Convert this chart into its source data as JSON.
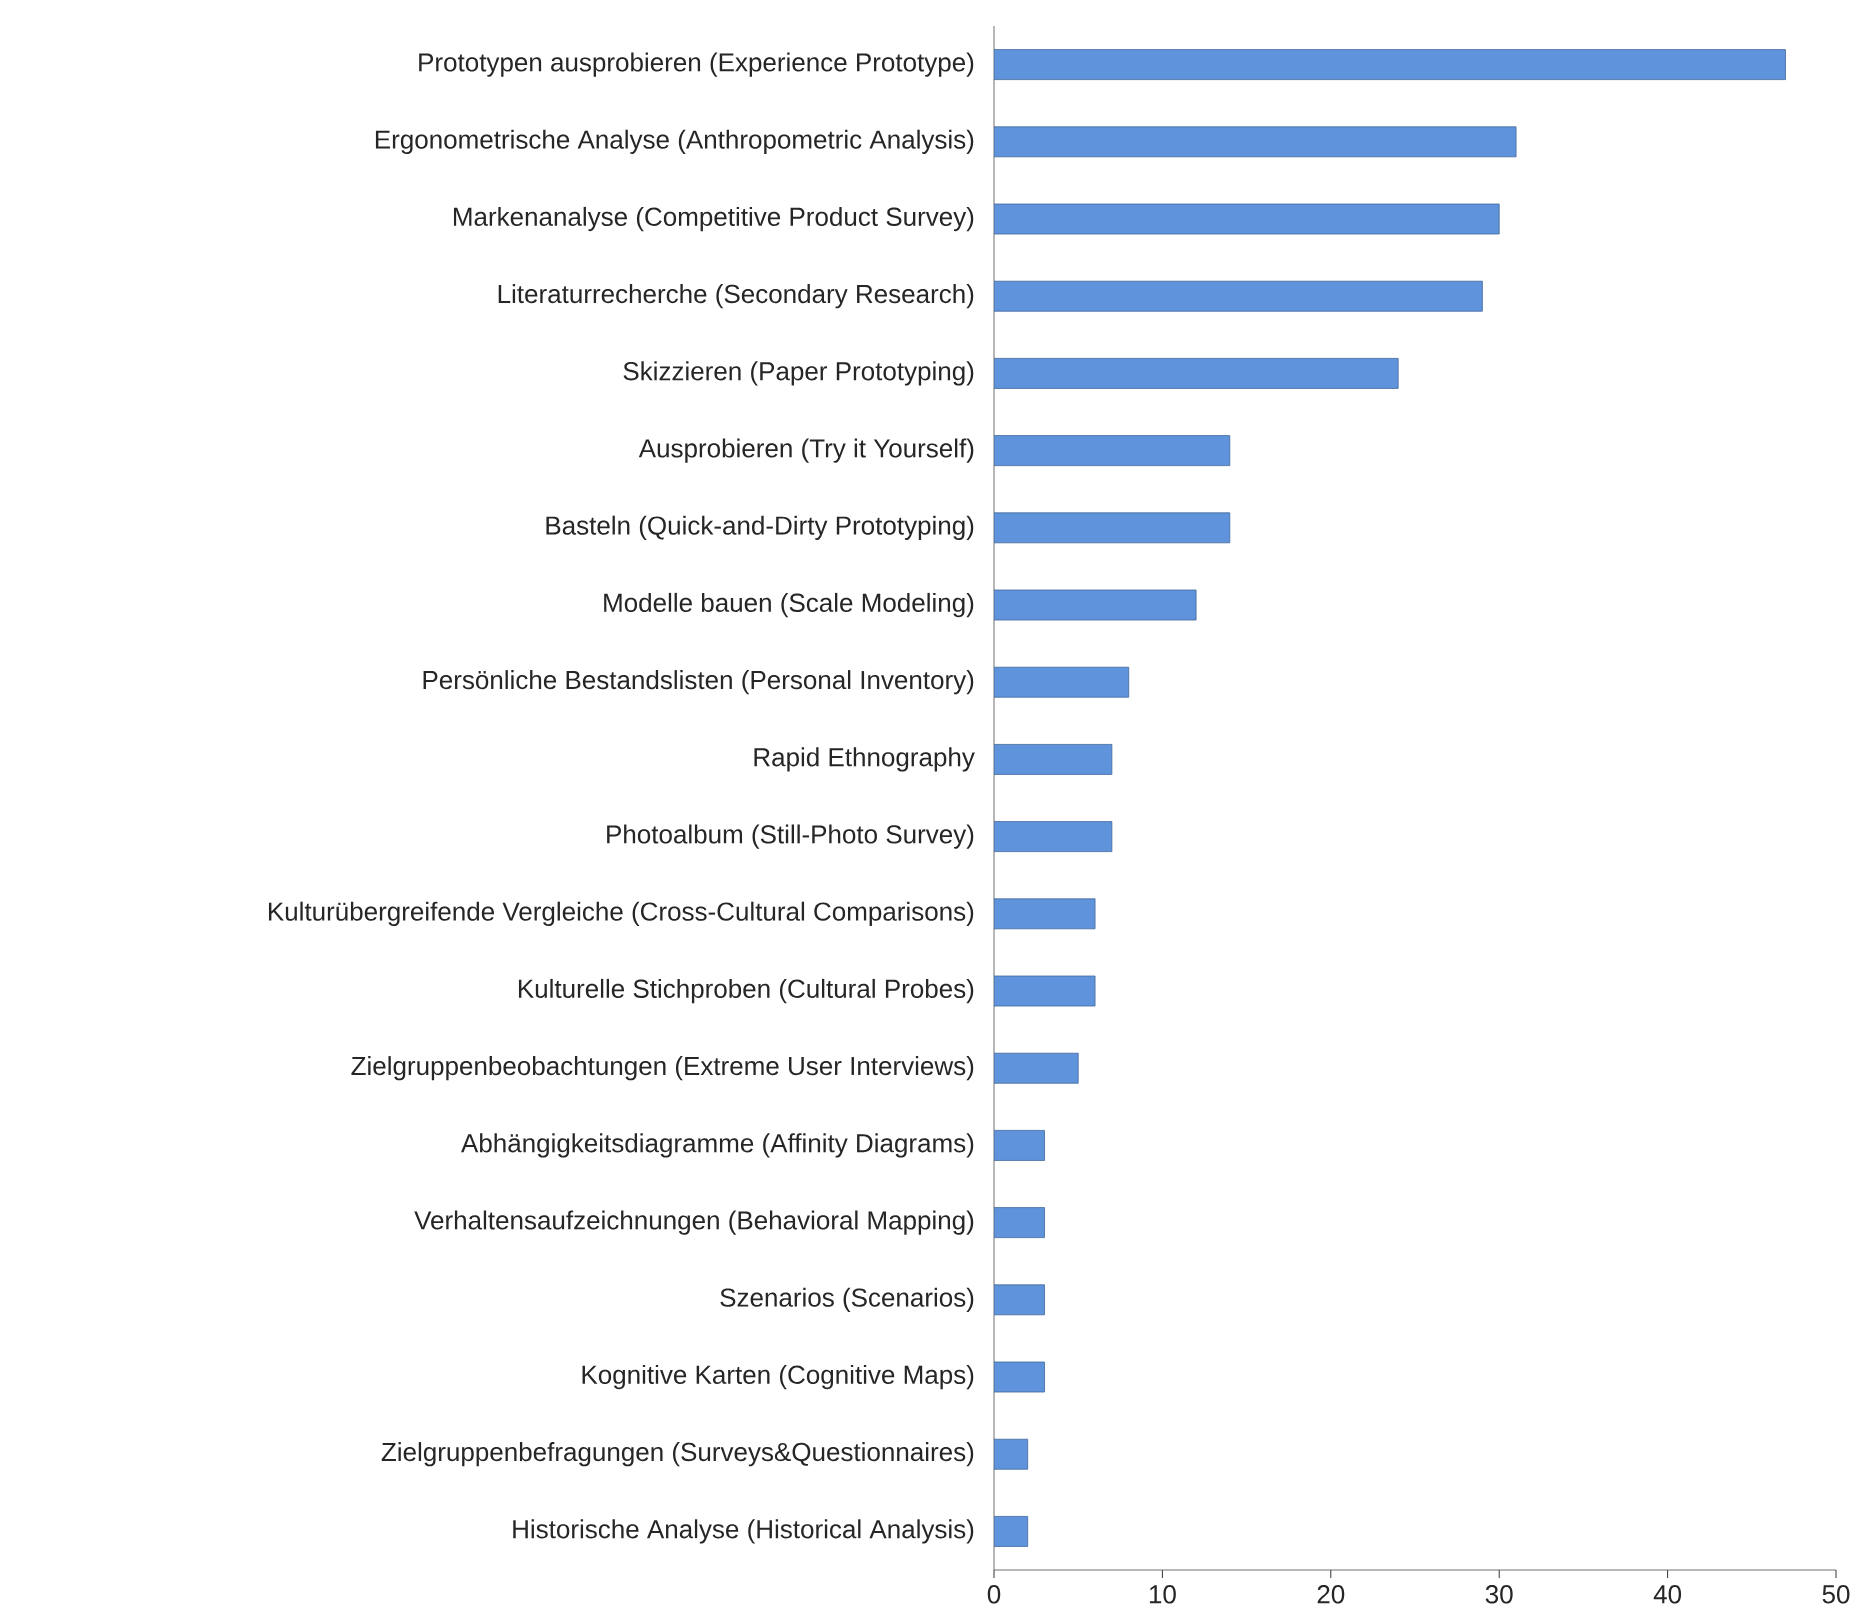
{
  "chart_data": {
    "type": "bar",
    "orientation": "horizontal",
    "categories": [
      "Prototypen ausprobieren (Experience Prototype)",
      "Ergonometrische Analyse (Anthropometric Analysis)",
      "Markenanalyse (Competitive Product Survey)",
      "Literaturrecherche (Secondary Research)",
      "Skizzieren (Paper Prototyping)",
      "Ausprobieren (Try it Yourself)",
      "Basteln (Quick-and-Dirty Prototyping)",
      "Modelle bauen (Scale Modeling)",
      "Persönliche Bestandslisten (Personal Inventory)",
      "Rapid Ethnography",
      "Photoalbum (Still-Photo Survey)",
      "Kulturübergreifende Vergleiche (Cross-Cultural Comparisons)",
      "Kulturelle Stichproben (Cultural Probes)",
      "Zielgruppenbeobachtungen (Extreme User Interviews)",
      "Abhängigkeitsdiagramme (Affinity Diagrams)",
      "Verhaltensaufzeichnungen (Behavioral Mapping)",
      "Szenarios (Scenarios)",
      "Kognitive Karten (Cognitive Maps)",
      "Zielgruppenbefragungen (Surveys&Questionnaires)",
      "Historische Analyse (Historical Analysis)"
    ],
    "values": [
      47,
      31,
      30,
      29,
      24,
      14,
      14,
      12,
      8,
      7,
      7,
      6,
      6,
      5,
      3,
      3,
      3,
      3,
      2,
      2
    ],
    "color": "#5f93dc",
    "xlim": [
      0,
      50
    ],
    "xticks": [
      0,
      10,
      20,
      30,
      40,
      50
    ],
    "grid": false
  }
}
